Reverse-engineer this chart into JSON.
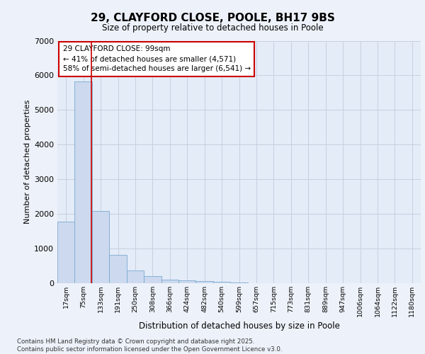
{
  "title_line1": "29, CLAYFORD CLOSE, POOLE, BH17 9BS",
  "title_line2": "Size of property relative to detached houses in Poole",
  "xlabel": "Distribution of detached houses by size in Poole",
  "ylabel": "Number of detached properties",
  "annotation_title": "29 CLAYFORD CLOSE: 99sqm",
  "annotation_line2": "← 41% of detached houses are smaller (4,571)",
  "annotation_line3": "58% of semi-detached houses are larger (6,541) →",
  "footer_line1": "Contains HM Land Registry data © Crown copyright and database right 2025.",
  "footer_line2": "Contains public sector information licensed under the Open Government Licence v3.0.",
  "bar_color": "#ccd9ee",
  "bar_edge_color": "#7aaad0",
  "grid_color": "#c8d0e0",
  "background_color": "#e4ecf8",
  "fig_background_color": "#edf2fa",
  "annotation_box_color": "#ffffff",
  "annotation_box_edge_color": "#cc0000",
  "red_line_color": "#cc0000",
  "categories": [
    "17sqm",
    "75sqm",
    "133sqm",
    "191sqm",
    "250sqm",
    "308sqm",
    "366sqm",
    "424sqm",
    "482sqm",
    "540sqm",
    "599sqm",
    "657sqm",
    "715sqm",
    "773sqm",
    "831sqm",
    "889sqm",
    "947sqm",
    "1006sqm",
    "1064sqm",
    "1122sqm",
    "1180sqm"
  ],
  "values": [
    1780,
    5820,
    2080,
    820,
    360,
    200,
    110,
    80,
    70,
    50,
    30,
    10,
    5,
    3,
    2,
    1,
    1,
    0,
    0,
    0,
    0
  ],
  "red_line_x": 1.48,
  "ylim": [
    0,
    7000
  ],
  "yticks": [
    0,
    1000,
    2000,
    3000,
    4000,
    5000,
    6000,
    7000
  ]
}
